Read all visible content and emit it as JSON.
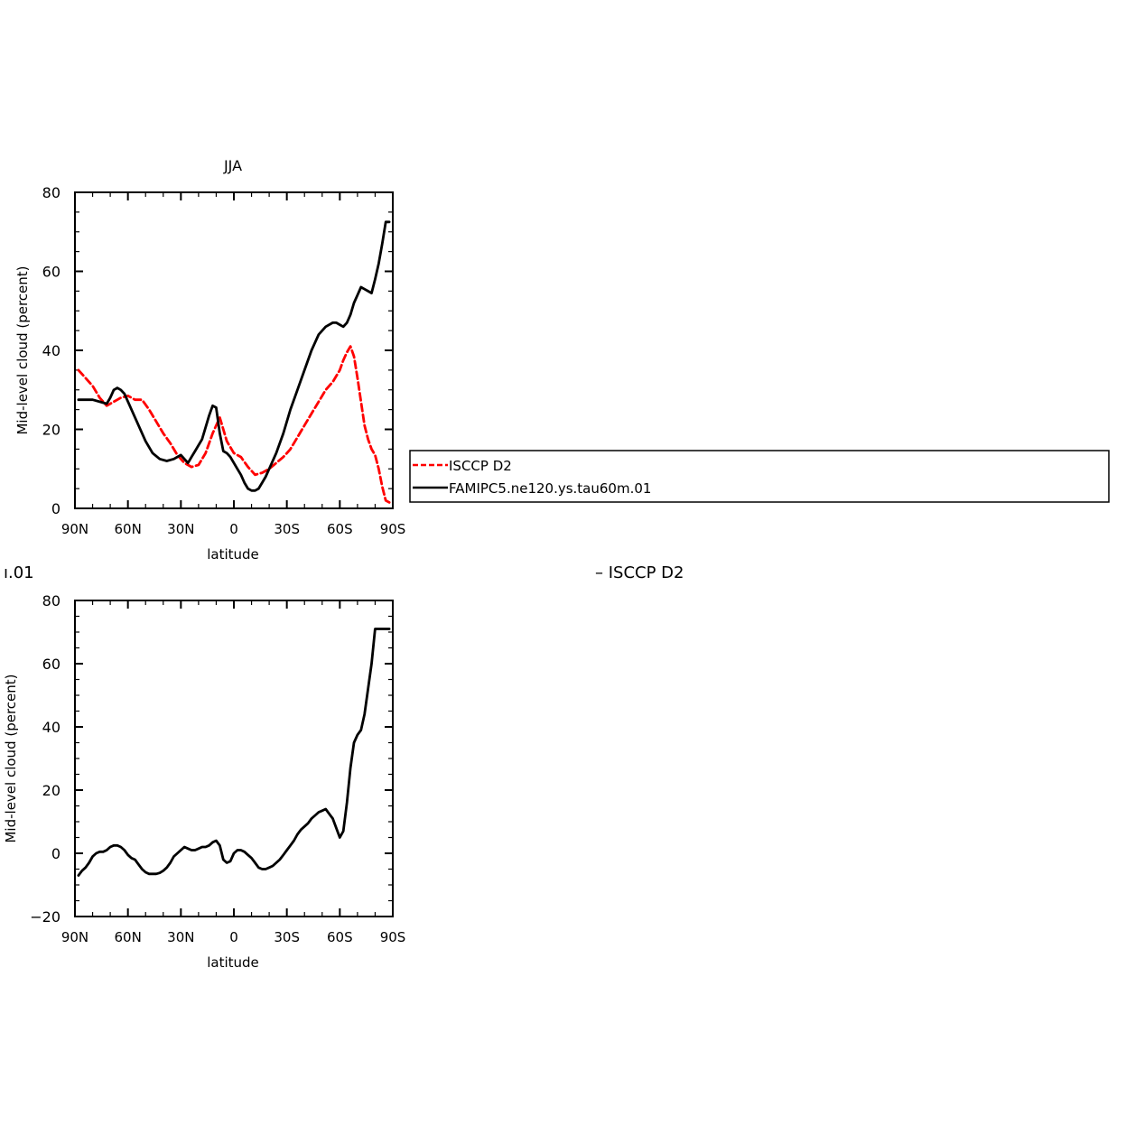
{
  "colors": {
    "background": "#ffffff",
    "obs_series": "#ff0000",
    "model_series": "#000000",
    "axes": "#000000"
  },
  "top_title_fragment": "JJA",
  "middle_title_left_fragment": "ı.01",
  "middle_title_right_fragment": "– ISCCP D2",
  "legend": {
    "entries": [
      {
        "label": "ISCCP D2",
        "color": "#ff0000",
        "style": "dashed"
      },
      {
        "label": "FAMIPC5.ne120.ys.tau60m.01",
        "color": "#000000",
        "style": "solid"
      }
    ]
  },
  "chart_data": [
    {
      "type": "line",
      "title": "JJA",
      "xlabel": "latitude",
      "ylabel": "Mid-level cloud (percent)",
      "xlim": [
        90,
        -90
      ],
      "ylim": [
        0,
        80
      ],
      "x_ticks": [
        90,
        60,
        30,
        0,
        -30,
        -60,
        -90
      ],
      "x_tick_labels": [
        "90N",
        "60N",
        "30N",
        "0",
        "30S",
        "60S",
        "90S"
      ],
      "y_ticks": [
        0,
        20,
        40,
        60,
        80
      ],
      "y_tick_labels": [
        "0",
        "20",
        "40",
        "60",
        "80"
      ],
      "series": [
        {
          "name": "ISCCP D2",
          "color": "#ff0000",
          "dashed": true,
          "x": [
            88,
            84,
            80,
            76,
            72,
            68,
            64,
            60,
            56,
            52,
            48,
            44,
            40,
            36,
            32,
            28,
            24,
            20,
            16,
            12,
            8,
            4,
            0,
            -4,
            -8,
            -12,
            -16,
            -20,
            -24,
            -28,
            -32,
            -36,
            -40,
            -44,
            -48,
            -52,
            -56,
            -60,
            -62,
            -64,
            -66,
            -68,
            -70,
            -72,
            -74,
            -76,
            -78,
            -80,
            -82,
            -84,
            -86,
            -88
          ],
          "y": [
            35,
            33,
            31,
            28,
            26,
            27,
            28,
            28.5,
            27.5,
            27.5,
            25,
            22,
            19,
            16.5,
            13.5,
            11.5,
            10.5,
            11,
            14,
            19,
            23,
            17,
            14,
            13,
            10.5,
            8.5,
            9,
            10,
            11.5,
            13,
            15,
            18,
            21,
            24,
            27,
            30,
            32,
            35,
            37.5,
            39.5,
            41,
            38.5,
            33,
            27,
            21,
            17.5,
            15,
            13.5,
            10,
            5.5,
            2,
            1.5
          ]
        },
        {
          "name": "FAMIPC5.ne120.ys.tau60m.01",
          "color": "#000000",
          "dashed": false,
          "x": [
            88,
            84,
            80,
            76,
            72,
            70,
            68,
            66,
            64,
            62,
            58,
            54,
            50,
            46,
            42,
            38,
            34,
            30,
            28,
            26,
            24,
            22,
            18,
            14,
            12,
            10,
            8,
            6,
            4,
            2,
            0,
            -2,
            -4,
            -6,
            -8,
            -10,
            -12,
            -14,
            -16,
            -18,
            -20,
            -24,
            -28,
            -32,
            -36,
            -40,
            -44,
            -48,
            -52,
            -56,
            -58,
            -60,
            -62,
            -64,
            -66,
            -68,
            -70,
            -72,
            -74,
            -76,
            -78,
            -80,
            -82,
            -84,
            -86,
            -88
          ],
          "y": [
            27.5,
            27.5,
            27.5,
            27,
            26.5,
            28,
            30,
            30.5,
            30,
            29,
            25,
            21,
            17,
            14,
            12.5,
            12,
            12.5,
            13.5,
            12.5,
            11.5,
            13,
            14.5,
            17.5,
            23.5,
            26,
            25.5,
            19,
            14.5,
            14,
            13,
            11.5,
            10,
            8.5,
            6.5,
            5,
            4.5,
            4.5,
            5,
            6.5,
            8,
            10,
            14,
            19,
            25,
            30,
            35,
            40,
            44,
            46,
            47,
            47,
            46.5,
            46,
            47,
            49,
            52,
            54,
            56,
            55.5,
            55,
            54.5,
            58,
            62,
            67,
            72.5,
            72.5
          ]
        }
      ]
    },
    {
      "type": "line",
      "title": "",
      "xlabel": "latitude",
      "ylabel": "Mid-level cloud (percent)",
      "xlim": [
        90,
        -90
      ],
      "ylim": [
        -20,
        80
      ],
      "x_ticks": [
        90,
        60,
        30,
        0,
        -30,
        -60,
        -90
      ],
      "x_tick_labels": [
        "90N",
        "60N",
        "30N",
        "0",
        "30S",
        "60S",
        "90S"
      ],
      "y_ticks": [
        -20,
        0,
        20,
        40,
        60,
        80
      ],
      "y_tick_labels": [
        "−20",
        "0",
        "20",
        "40",
        "60",
        "80"
      ],
      "series": [
        {
          "name": "",
          "color": "#000000",
          "dashed": false,
          "x": [
            88,
            86,
            84,
            82,
            80,
            78,
            76,
            74,
            72,
            70,
            68,
            66,
            64,
            62,
            60,
            58,
            56,
            54,
            52,
            50,
            48,
            46,
            44,
            42,
            40,
            38,
            36,
            34,
            32,
            30,
            28,
            26,
            24,
            22,
            20,
            18,
            16,
            14,
            12,
            10,
            8,
            6,
            4,
            2,
            0,
            -2,
            -4,
            -6,
            -8,
            -10,
            -12,
            -14,
            -16,
            -18,
            -20,
            -22,
            -24,
            -26,
            -28,
            -30,
            -32,
            -34,
            -36,
            -38,
            -40,
            -42,
            -44,
            -46,
            -48,
            -50,
            -52,
            -54,
            -56,
            -58,
            -60,
            -62,
            -64,
            -66,
            -68,
            -70,
            -72,
            -74,
            -76,
            -78,
            -80,
            -82,
            -84,
            -86,
            -88
          ],
          "y": [
            -7,
            -5.5,
            -4.5,
            -3,
            -1,
            0,
            0.5,
            0.5,
            1,
            2,
            2.5,
            2.5,
            2,
            1,
            -0.5,
            -1.5,
            -2,
            -3.5,
            -5,
            -6,
            -6.5,
            -6.5,
            -6.5,
            -6.2,
            -5.5,
            -4.5,
            -3,
            -1,
            0,
            1,
            2,
            1.5,
            1,
            1,
            1.5,
            2,
            2,
            2.5,
            3.5,
            4,
            2.5,
            -2,
            -3,
            -2.5,
            0,
            1,
            1,
            0.5,
            -0.5,
            -1.5,
            -3,
            -4.5,
            -5,
            -5,
            -4.5,
            -4,
            -3,
            -2,
            -0.5,
            1,
            2.5,
            4,
            6,
            7.5,
            8.5,
            9.5,
            11,
            12,
            13,
            13.5,
            14,
            12.5,
            11,
            8,
            5,
            7,
            16,
            27,
            35,
            37.5,
            39,
            44,
            52,
            60,
            71,
            71,
            71,
            71,
            71
          ]
        }
      ]
    }
  ]
}
